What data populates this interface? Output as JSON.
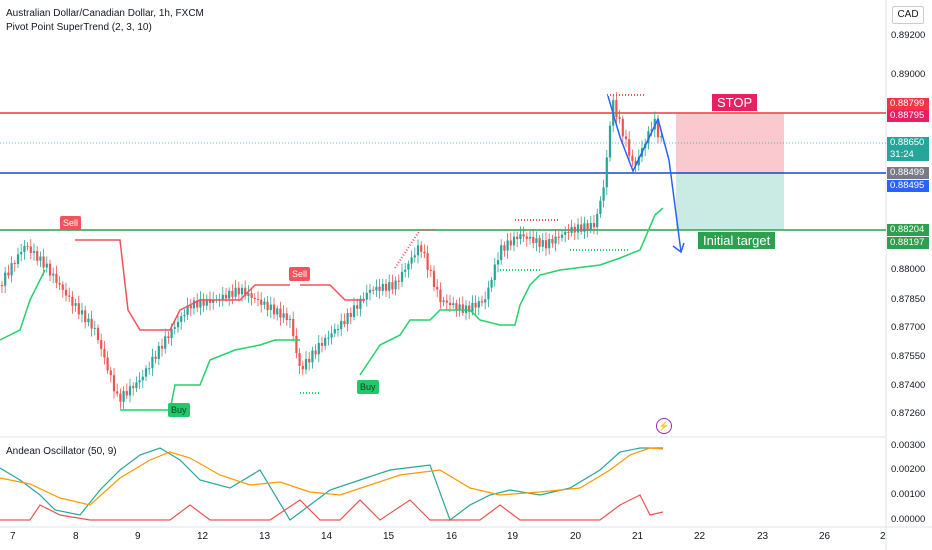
{
  "chart": {
    "symbol_title": "Australian Dollar/Canadian Dollar, 1h, FXCM",
    "indicator_title": "Pivot Point SuperTrend (2, 3, 10)",
    "currency": "CAD"
  },
  "price_axis": {
    "labels": [
      "0.89200",
      "0.89000",
      "0.88000",
      "0.87850",
      "0.87700",
      "0.87550",
      "0.87400",
      "0.87260"
    ]
  },
  "price_tags": {
    "stop_upper": "0.88799",
    "stop_lower": "0.88795",
    "current_price": "0.88650",
    "countdown": "31:24",
    "entry_upper": "0.88499",
    "entry_lower": "0.88495",
    "target_upper": "0.88204",
    "target_lower": "0.88197"
  },
  "annotations": {
    "stop_label": "STOP",
    "target_label": "Initial target"
  },
  "signals": [
    {
      "label": "Sell",
      "type": "sell"
    },
    {
      "label": "Sell",
      "type": "sell"
    },
    {
      "label": "Buy",
      "type": "buy"
    },
    {
      "label": "Buy",
      "type": "buy"
    }
  ],
  "oscillator": {
    "title": "Andean Oscillator (50, 9)",
    "labels": [
      "0.00300",
      "0.00200",
      "0.00100",
      "0.00000"
    ]
  },
  "time_axis": {
    "labels": [
      "7",
      "8",
      "9",
      "12",
      "13",
      "14",
      "15",
      "16",
      "19",
      "20",
      "21",
      "22",
      "23",
      "26",
      "2"
    ]
  },
  "colors": {
    "up_candle": "#26a69a",
    "down_candle": "#ef5350",
    "supertrend_up": "#22d36a",
    "supertrend_down": "#f2525b",
    "stop_line": "#f23645",
    "entry_line": "#1848cc",
    "target_line": "#2e9e4f",
    "risk_zone": "#f9c9cf",
    "reward_zone": "#c9ebe3"
  }
}
